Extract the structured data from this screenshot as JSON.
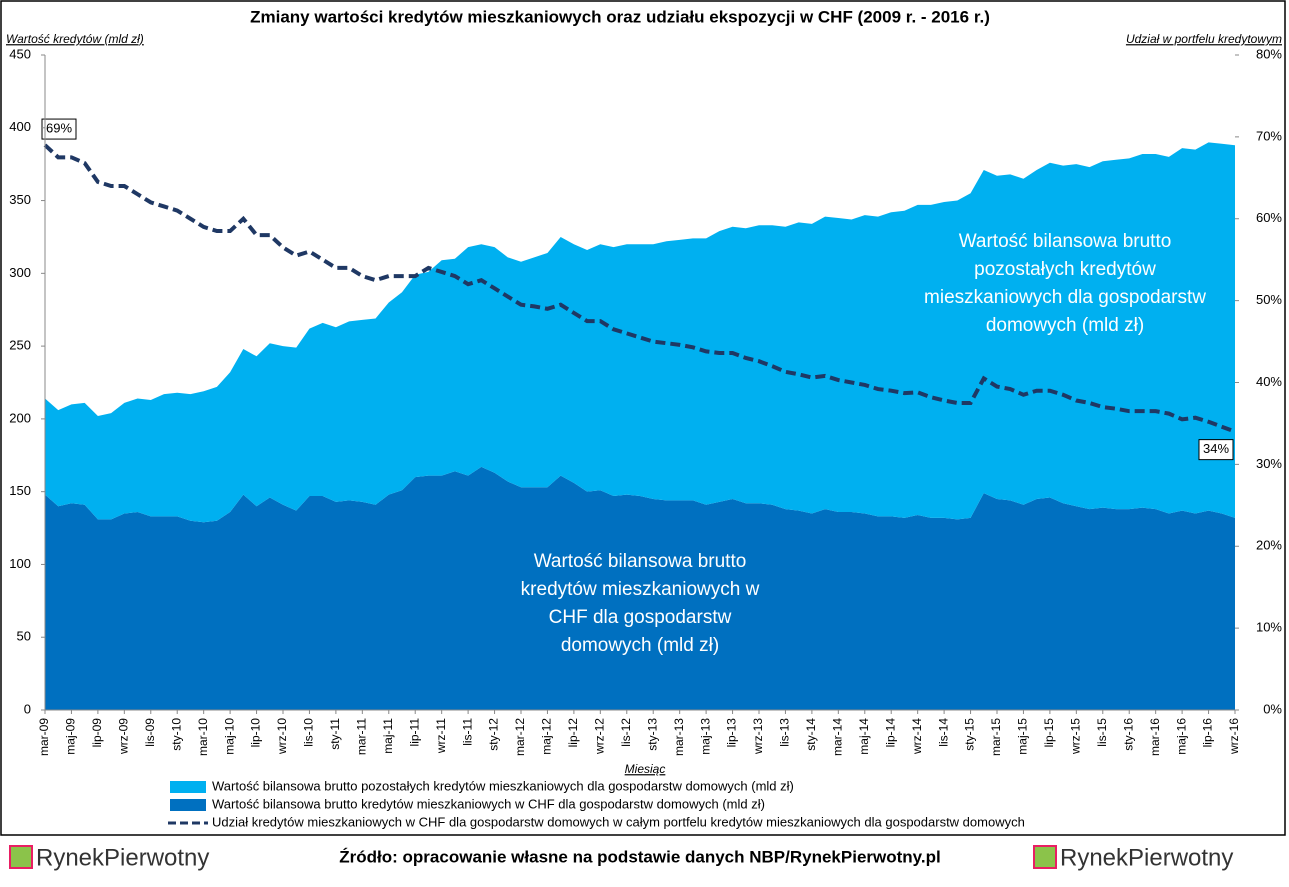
{
  "chart_data": {
    "type": "stacked-area-line",
    "title": "Zmiany wartości kredytów mieszkaniowych oraz udziału ekspozycji w CHF (2009 r. - 2016 r.)",
    "y_label": "Wartość kredytów (mld zł)",
    "y2_label": "Udział w portfelu kredytowym",
    "x_label": "Miesiąc",
    "categories": [
      "mar-09",
      null,
      "maj-09",
      null,
      "lip-09",
      null,
      "wrz-09",
      null,
      "lis-09",
      null,
      "sty-10",
      null,
      "mar-10",
      null,
      "maj-10",
      null,
      "lip-10",
      null,
      "wrz-10",
      null,
      "lis-10",
      null,
      "sty-11",
      null,
      "mar-11",
      null,
      "maj-11",
      null,
      "lip-11",
      null,
      "wrz-11",
      null,
      "lis-11",
      null,
      "sty-12",
      null,
      "mar-12",
      null,
      "maj-12",
      null,
      "lip-12",
      null,
      "wrz-12",
      null,
      "lis-12",
      null,
      "sty-13",
      null,
      "mar-13",
      null,
      "maj-13",
      null,
      "lip-13",
      null,
      "wrz-13",
      null,
      "lis-13",
      null,
      "sty-14",
      null,
      "mar-14",
      null,
      "maj-14",
      null,
      "lip-14",
      null,
      "wrz-14",
      null,
      "lis-14",
      null,
      "sty-15",
      null,
      "mar-15",
      null,
      "maj-15",
      null,
      "lip-15",
      null,
      "wrz-15",
      null,
      "lis-15",
      null,
      "sty-16",
      null,
      "mar-16",
      null,
      "maj-16",
      null,
      "lip-16",
      null,
      "wrz-16"
    ],
    "stacked": true,
    "series": [
      {
        "name": "Wartość bilansowa brutto pozostałych kredytów mieszkaniowych dla gospodarstw domowych (mld zł)",
        "color": "#00b0f0",
        "kind": "area",
        "values": [
          66,
          66,
          68,
          70,
          71,
          73,
          76,
          78,
          80,
          84,
          85,
          87,
          90,
          92,
          96,
          100,
          103,
          106,
          109,
          112,
          115,
          119,
          120,
          123,
          125,
          128,
          132,
          136,
          139,
          140,
          148,
          146,
          157,
          153,
          155,
          154,
          155,
          158,
          161,
          164,
          164,
          166,
          169,
          171,
          172,
          173,
          175,
          178,
          179,
          180,
          183,
          186,
          187,
          189,
          191,
          192,
          194,
          198,
          199,
          201,
          202,
          201,
          205,
          206,
          209,
          211,
          213,
          215,
          217,
          219,
          223,
          222,
          222,
          224,
          224,
          226,
          230,
          232,
          235,
          235,
          238,
          240,
          241,
          243,
          244,
          245,
          249,
          250,
          253,
          254,
          256
        ]
      },
      {
        "name": "Wartość bilansowa brutto kredytów mieszkaniowych w CHF dla gospodarstw domowych (mld zł)",
        "color": "#0070c0",
        "kind": "area",
        "values": [
          148,
          140,
          142,
          141,
          131,
          131,
          135,
          136,
          133,
          133,
          133,
          130,
          129,
          130,
          136,
          148,
          140,
          146,
          141,
          137,
          147,
          147,
          143,
          144,
          143,
          141,
          148,
          151,
          160,
          161,
          161,
          164,
          161,
          167,
          163,
          157,
          153,
          153,
          153,
          161,
          156,
          150,
          151,
          147,
          148,
          147,
          145,
          144,
          144,
          144,
          141,
          143,
          145,
          142,
          142,
          141,
          138,
          137,
          135,
          138,
          136,
          136,
          135,
          133,
          133,
          132,
          134,
          132,
          132,
          131,
          132,
          149,
          145,
          144,
          141,
          145,
          146,
          142,
          140,
          138,
          139,
          138,
          138,
          139,
          138,
          135,
          137,
          135,
          137,
          135,
          132
        ]
      },
      {
        "name": "Udział kredytów mieszkaniowych w CHF dla gospodarstw domowych w całym portfelu kredytów mieszkaniowych dla gospodarstw domowych",
        "color": "#1f3864",
        "kind": "line",
        "dashed": true,
        "axis": "y2",
        "values": [
          69,
          67.5,
          67.5,
          66.8,
          64.5,
          64,
          64,
          63,
          62,
          61.5,
          61,
          60,
          59,
          58.5,
          58.5,
          60,
          58,
          58,
          56.5,
          55.5,
          56,
          55,
          54,
          54,
          53,
          52.5,
          53,
          53,
          53,
          54,
          53.5,
          53,
          52,
          52.5,
          51.5,
          50.5,
          49.5,
          49.3,
          49,
          49.5,
          48.5,
          47.5,
          47.5,
          46.5,
          46,
          45.5,
          45,
          44.8,
          44.6,
          44.3,
          43.8,
          43.6,
          43.6,
          43,
          42.6,
          42,
          41.3,
          41,
          40.6,
          40.8,
          40.3,
          40,
          39.7,
          39.2,
          39,
          38.7,
          38.8,
          38.2,
          37.8,
          37.5,
          37.5,
          40.5,
          39.5,
          39.2,
          38.5,
          39,
          39,
          38.5,
          37.8,
          37.5,
          37,
          36.8,
          36.5,
          36.5,
          36.5,
          36.2,
          35.5,
          35.7,
          35.2,
          34.6,
          34
        ],
        "value_labels": [
          "69%",
          null,
          null,
          null,
          null,
          null,
          null,
          null,
          null,
          null,
          null,
          null,
          null,
          null,
          null,
          null,
          null,
          null,
          null,
          null,
          null,
          null,
          null,
          null,
          null,
          null,
          null,
          null,
          null,
          null,
          null,
          null,
          null,
          null,
          null,
          null,
          null,
          null,
          null,
          null,
          null,
          null,
          null,
          null,
          null,
          null,
          null,
          null,
          null,
          null,
          null,
          null,
          null,
          null,
          null,
          null,
          null,
          null,
          null,
          null,
          null,
          null,
          null,
          null,
          null,
          null,
          null,
          null,
          null,
          null,
          null,
          null,
          null,
          null,
          null,
          null,
          null,
          null,
          null,
          null,
          null,
          null,
          null,
          null,
          null,
          null,
          null,
          null,
          null,
          null,
          "34%"
        ]
      }
    ],
    "ylim": [
      0,
      450
    ],
    "yticks": [
      0,
      50,
      100,
      150,
      200,
      250,
      300,
      350,
      400,
      450
    ],
    "y2lim": [
      0,
      80
    ],
    "y2ticks": [
      {
        "value": 0,
        "label": "0%"
      },
      {
        "value": 10,
        "label": "10%"
      },
      {
        "value": 20,
        "label": "20%"
      },
      {
        "value": 30,
        "label": "30%"
      },
      {
        "value": 40,
        "label": "40%"
      },
      {
        "value": 50,
        "label": "50%"
      },
      {
        "value": 60,
        "label": "60%"
      },
      {
        "value": 70,
        "label": "70%"
      },
      {
        "value": 80,
        "label": "80%"
      }
    ],
    "annotations": [
      {
        "lines": [
          "Wartość bilansowa brutto",
          "pozostałych kredytów",
          "mieszkaniowych dla gospodarstw",
          "domowych (mld zł)"
        ]
      },
      {
        "lines": [
          "Wartość bilansowa brutto",
          "kredytów mieszkaniowych w",
          "CHF dla gospodarstw",
          "domowych (mld zł)"
        ]
      }
    ],
    "source": "Źródło: opracowanie własne na podstawie danych NBP/RynekPierwotny.pl",
    "logo_text": "RynekPierwotny"
  }
}
